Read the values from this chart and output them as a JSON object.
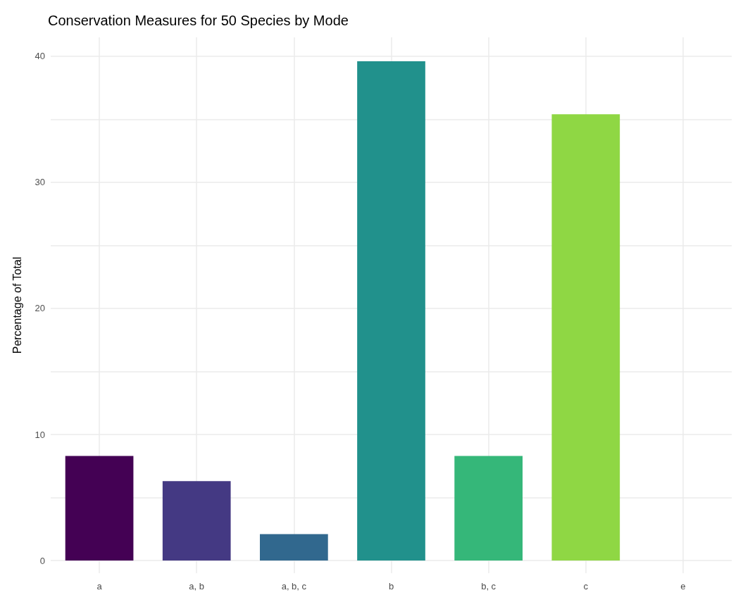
{
  "chart_data": {
    "type": "bar",
    "title": "Conservation Measures for 50 Species by Mode",
    "ylabel": "Percentage of Total",
    "categories": [
      "a",
      "a, b",
      "a, b, c",
      "b",
      "b, c",
      "c",
      "e"
    ],
    "values": [
      8.3,
      6.3,
      2.1,
      39.6,
      8.3,
      35.4,
      0
    ],
    "colors": [
      "#440154",
      "#443983",
      "#31688e",
      "#21918c",
      "#35b779",
      "#8fd744",
      "#fde725"
    ],
    "ylim": [
      -1,
      41.5
    ],
    "yticks": [
      0,
      {
        "value": 5,
        "label": null
      },
      10,
      {
        "value": 15,
        "label": null
      },
      20,
      {
        "value": 25,
        "label": null
      },
      30,
      {
        "value": 35,
        "label": null
      },
      40
    ],
    "grid": true
  }
}
